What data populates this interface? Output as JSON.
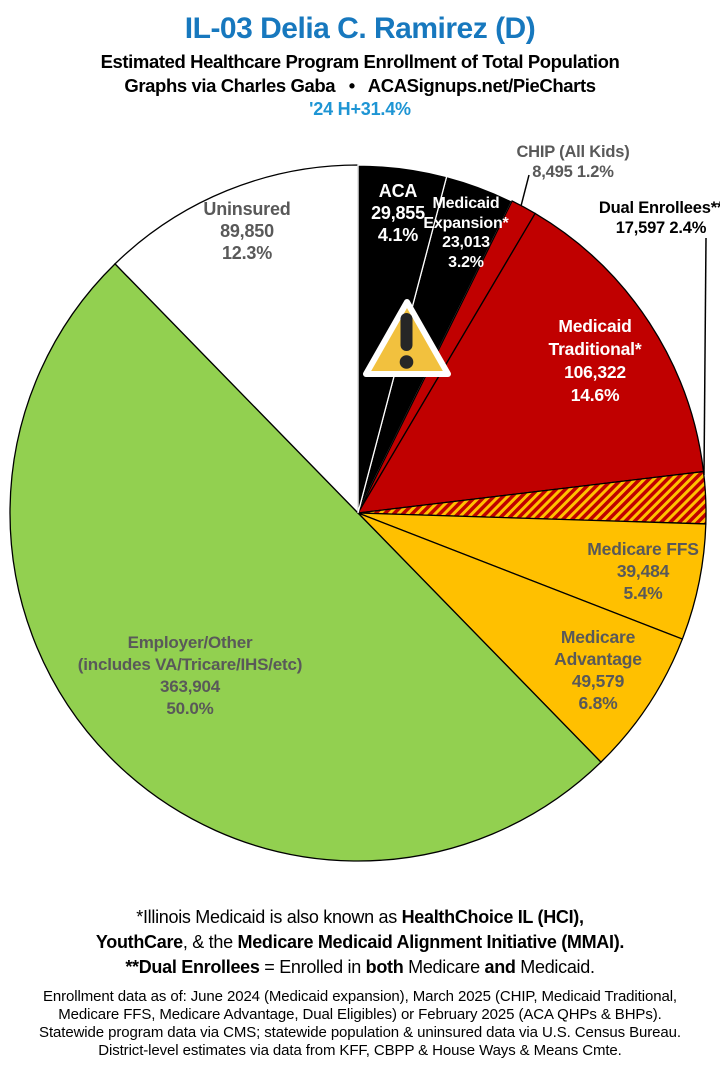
{
  "header": {
    "title": "IL-03 Delia C. Ramirez (D)",
    "subtitle1": "Estimated Healthcare Program Enrollment of Total Population",
    "subtitle2": "Graphs via Charles Gaba  •  ACASignups.net/PieCharts",
    "hplus": "'24 H+31.4%",
    "title_color": "#1778BE",
    "hplus_color": "#1E95D4"
  },
  "chart_data": {
    "type": "pie",
    "title": "Estimated Healthcare Program Enrollment of Total Population",
    "units": "people",
    "start": "12 o'clock, clockwise",
    "legend_position": "none",
    "label_gray": "#595959",
    "hatch": {
      "bg": "#C00000",
      "stripe": "#FFC000"
    },
    "slices": [
      {
        "id": "aca",
        "name": "ACA",
        "value": 29855,
        "pct": 4.1,
        "color": "#000000",
        "stroke": "#ffffff",
        "label_lines": [
          "ACA",
          "29,855",
          "4.1%"
        ],
        "label_color": "#ffffff"
      },
      {
        "id": "medicaid-expansion",
        "name": "Medicaid Expansion*",
        "value": 23013,
        "pct": 3.2,
        "color": "#000000",
        "stroke": "#ffffff",
        "label_lines": [
          "Medicaid",
          "Expansion*",
          "23,013",
          "3.2%"
        ],
        "label_color": "#ffffff"
      },
      {
        "id": "chip",
        "name": "CHIP (All Kids)",
        "value": 8495,
        "pct": 1.2,
        "color": "#C00000",
        "stroke": "#000000",
        "label_lines": [
          "CHIP (All Kids)",
          "8,495 1.2%"
        ],
        "label_color": "#595959",
        "label_outside": true
      },
      {
        "id": "medicaid-traditional",
        "name": "Medicaid Traditional*",
        "value": 106322,
        "pct": 14.6,
        "color": "#C00000",
        "stroke": "#000000",
        "label_lines": [
          "Medicaid",
          "Traditional*",
          "106,322",
          "14.6%"
        ],
        "label_color": "#ffffff"
      },
      {
        "id": "dual-enrollees",
        "name": "Dual Enrollees**",
        "value": 17597,
        "pct": 2.4,
        "color": "hatch",
        "stroke": "#000000",
        "label_lines": [
          "Dual Enrollees**",
          "17,597 2.4%"
        ],
        "label_color": "#000000",
        "label_outside": true
      },
      {
        "id": "medicare-ffs",
        "name": "Medicare FFS",
        "value": 39484,
        "pct": 5.4,
        "color": "#FFC000",
        "stroke": "#000000",
        "label_lines": [
          "Medicare FFS",
          "39,484",
          "5.4%"
        ],
        "label_color": "#595959"
      },
      {
        "id": "medicare-advantage",
        "name": "Medicare Advantage",
        "value": 49579,
        "pct": 6.8,
        "color": "#FFC000",
        "stroke": "#000000",
        "label_lines": [
          "Medicare",
          "Advantage",
          "49,579",
          "6.8%"
        ],
        "label_color": "#595959"
      },
      {
        "id": "employer-other",
        "name": "Employer/Other (includes VA/Tricare/IHS/etc)",
        "value": 363904,
        "pct": 50.0,
        "color": "#92D050",
        "stroke": "#000000",
        "label_lines": [
          "Employer/Other",
          "(includes VA/Tricare/IHS/etc)",
          "363,904",
          "50.0%"
        ],
        "label_color": "#595959"
      },
      {
        "id": "uninsured",
        "name": "Uninsured",
        "value": 89850,
        "pct": 12.3,
        "color": "#FFFFFF",
        "stroke": "#000000",
        "label_lines": [
          "Uninsured",
          "89,850",
          "12.3%"
        ],
        "label_color": "#595959"
      }
    ]
  },
  "warning_icon": {
    "name": "warning-triangle-icon",
    "fill": "#F2C13E",
    "mark_color": "#262626"
  },
  "notes": {
    "line1": [
      {
        "t": "*Illinois Medicaid is also known as ",
        "b": false
      },
      {
        "t": "HealthChoice IL (HCI),",
        "b": true
      }
    ],
    "line2": [
      {
        "t": "YouthCare",
        "b": true
      },
      {
        "t": ", & the ",
        "b": false
      },
      {
        "t": "Medicare Medicaid Alignment Initiative (MMAI).",
        "b": true
      }
    ],
    "line3": [
      {
        "t": "**Dual Enrollees",
        "b": true
      },
      {
        "t": " = Enrolled in ",
        "b": false
      },
      {
        "t": "both",
        "b": true
      },
      {
        "t": " Medicare ",
        "b": false
      },
      {
        "t": "and",
        "b": true
      },
      {
        "t": " Medicaid.",
        "b": false
      }
    ]
  },
  "sources": {
    "line1": "Enrollment data as of: June 2024 (Medicaid expansion), March 2025 (CHIP, Medicaid Traditional,",
    "line2": "Medicare FFS, Medicare Advantage, Dual Eligibles) or February 2025 (ACA QHPs & BHPs).",
    "line3": "Statewide program data via CMS; statewide population & uninsured data via U.S. Census Bureau.",
    "line4": "District-level estimates via data from KFF, CBPP & House Ways & Means Cmte."
  }
}
